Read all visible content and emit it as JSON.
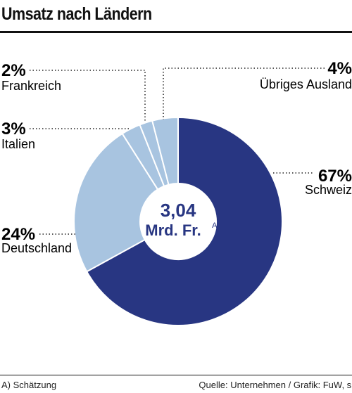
{
  "title": "Umsatz nach Ländern",
  "center": {
    "value": "3,04",
    "unit": "Mrd. Fr.",
    "footnote_mark": "A"
  },
  "footnote": "A) Schätzung",
  "source": "Quelle: Unternehmen / Grafik: FuW, sm",
  "colors": {
    "dark": "#283682",
    "light": "#a8c4e0",
    "text": "#111111"
  },
  "chart_data": {
    "type": "pie",
    "variant": "donut",
    "title": "Umsatz nach Ländern",
    "total": "3,04 Mrd. Fr.",
    "slices": [
      {
        "name": "Schweiz",
        "value": 67,
        "label": "67%",
        "color": "#283682"
      },
      {
        "name": "Deutschland",
        "value": 24,
        "label": "24%",
        "color": "#a8c4e0"
      },
      {
        "name": "Italien",
        "value": 3,
        "label": "3%",
        "color": "#a8c4e0"
      },
      {
        "name": "Frankreich",
        "value": 2,
        "label": "2%",
        "color": "#a8c4e0"
      },
      {
        "name": "Übriges Ausland",
        "value": 4,
        "label": "4%",
        "color": "#a8c4e0"
      }
    ]
  }
}
